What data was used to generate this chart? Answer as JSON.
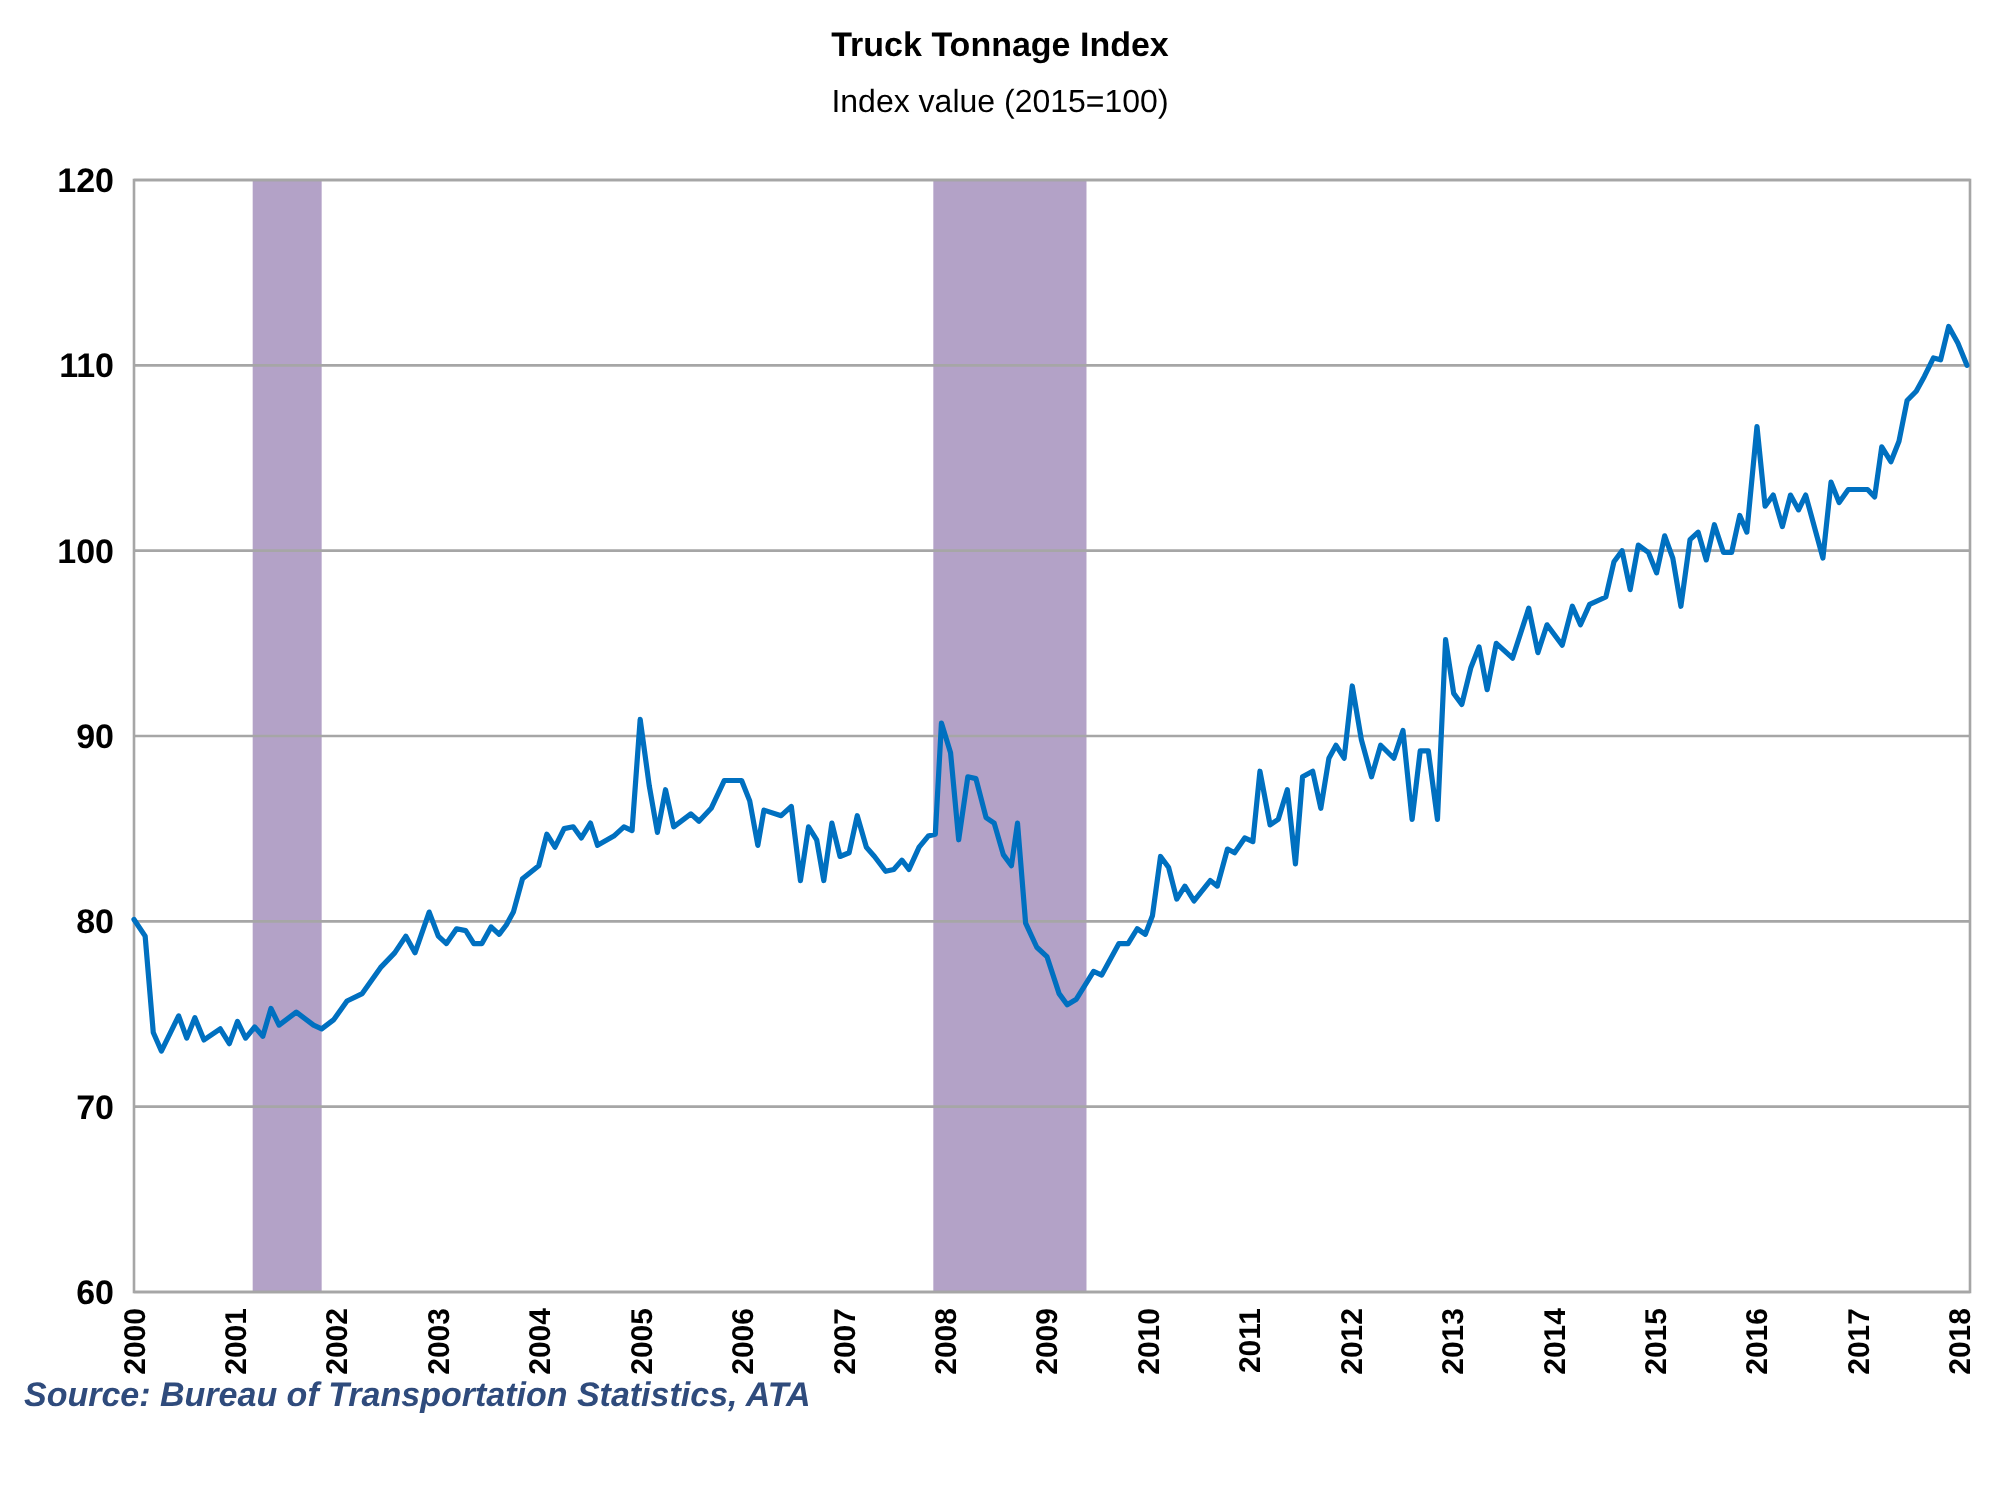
{
  "chart_data": {
    "type": "line",
    "title": "Truck Tonnage Index",
    "subtitle": "Index value (2015=100)",
    "annotations": [
      "Source: Bureau of Transportation Statistics, ATA"
    ],
    "xlim": [
      2000,
      2018.1
    ],
    "xticks": [
      2000,
      2001,
      2002,
      2003,
      2004,
      2005,
      2006,
      2007,
      2008,
      2009,
      2010,
      2011,
      2012,
      2013,
      2014,
      2015,
      2016,
      2017,
      2018
    ],
    "ylim": [
      60,
      120
    ],
    "yticks": [
      60,
      70,
      80,
      90,
      100,
      110,
      120
    ],
    "grid": "y",
    "marker": "none",
    "line_style": "solid",
    "bands": [
      {
        "axis": "x",
        "from": 2001.17,
        "to": 2001.85,
        "color": "#b3a2c7"
      },
      {
        "axis": "x",
        "from": 2007.88,
        "to": 2009.39,
        "color": "#b3a2c7"
      }
    ],
    "series": [
      {
        "color": "#0070c0",
        "x": [
          2000.0,
          2000.11,
          2000.19,
          2000.27,
          2000.44,
          2000.52,
          2000.6,
          2000.69,
          2000.85,
          2000.94,
          2001.02,
          2001.1,
          2001.19,
          2001.27,
          2001.35,
          2001.43,
          2001.6,
          2001.77,
          2001.85,
          2001.97,
          2002.1,
          2002.25,
          2002.43,
          2002.57,
          2002.68,
          2002.77,
          2002.91,
          2003.0,
          2003.08,
          2003.18,
          2003.27,
          2003.35,
          2003.43,
          2003.52,
          2003.6,
          2003.67,
          2003.74,
          2003.83,
          2003.99,
          2004.07,
          2004.15,
          2004.24,
          2004.33,
          2004.41,
          2004.5,
          2004.57,
          2004.73,
          2004.83,
          2004.91,
          2004.99,
          2005.08,
          2005.16,
          2005.24,
          2005.32,
          2005.49,
          2005.57,
          2005.69,
          2005.82,
          2005.99,
          2006.07,
          2006.15,
          2006.21,
          2006.38,
          2006.48,
          2006.57,
          2006.65,
          2006.73,
          2006.8,
          2006.88,
          2006.96,
          2007.05,
          2007.13,
          2007.22,
          2007.3,
          2007.41,
          2007.49,
          2007.57,
          2007.64,
          2007.74,
          2007.83,
          2007.9,
          2007.96,
          2008.05,
          2008.13,
          2008.22,
          2008.3,
          2008.4,
          2008.48,
          2008.57,
          2008.65,
          2008.71,
          2008.79,
          2008.9,
          2009.0,
          2009.12,
          2009.2,
          2009.29,
          2009.46,
          2009.54,
          2009.71,
          2009.8,
          2009.89,
          2009.97,
          2010.04,
          2010.12,
          2010.2,
          2010.28,
          2010.36,
          2010.45,
          2010.61,
          2010.68,
          2010.78,
          2010.85,
          2010.95,
          2011.03,
          2011.1,
          2011.2,
          2011.28,
          2011.37,
          2011.45,
          2011.52,
          2011.62,
          2011.7,
          2011.78,
          2011.85,
          2011.93,
          2012.01,
          2012.1,
          2012.2,
          2012.29,
          2012.42,
          2012.51,
          2012.6,
          2012.68,
          2012.76,
          2012.85,
          2012.93,
          2013.01,
          2013.09,
          2013.18,
          2013.26,
          2013.34,
          2013.43,
          2013.59,
          2013.75,
          2013.84,
          2013.93,
          2014.08,
          2014.18,
          2014.26,
          2014.35,
          2014.51,
          2014.59,
          2014.67,
          2014.75,
          2014.83,
          2014.93,
          2015.01,
          2015.09,
          2015.17,
          2015.25,
          2015.34,
          2015.42,
          2015.5,
          2015.58,
          2015.67,
          2015.75,
          2015.83,
          2015.9,
          2016.0,
          2016.08,
          2016.16,
          2016.25,
          2016.33,
          2016.41,
          2016.48,
          2016.65,
          2016.73,
          2016.81,
          2016.9,
          2017.09,
          2017.16,
          2017.23,
          2017.32,
          2017.4,
          2017.48,
          2017.57,
          2017.65,
          2017.74,
          2017.81,
          2017.89,
          2017.98,
          2018.07
        ],
        "values": [
          80.1,
          79.2,
          74.0,
          73.0,
          74.9,
          73.7,
          74.8,
          73.6,
          74.2,
          73.4,
          74.6,
          73.7,
          74.3,
          73.8,
          75.3,
          74.4,
          75.1,
          74.4,
          74.2,
          74.7,
          75.7,
          76.1,
          77.5,
          78.3,
          79.2,
          78.3,
          80.5,
          79.2,
          78.8,
          79.6,
          79.5,
          78.8,
          78.8,
          79.7,
          79.3,
          79.8,
          80.5,
          82.3,
          83.0,
          84.7,
          84.0,
          85.0,
          85.1,
          84.5,
          85.3,
          84.1,
          84.6,
          85.1,
          84.9,
          90.9,
          87.3,
          84.8,
          87.1,
          85.1,
          85.8,
          85.4,
          86.1,
          87.6,
          87.6,
          86.5,
          84.1,
          86.0,
          85.7,
          86.2,
          82.2,
          85.1,
          84.4,
          82.2,
          85.3,
          83.5,
          83.7,
          85.7,
          84.0,
          83.5,
          82.7,
          82.8,
          83.3,
          82.8,
          84.0,
          84.6,
          84.7,
          90.7,
          89.1,
          84.4,
          87.8,
          87.7,
          85.6,
          85.3,
          83.6,
          83.0,
          85.3,
          79.9,
          78.6,
          78.1,
          76.1,
          75.5,
          75.8,
          77.3,
          77.1,
          78.8,
          78.8,
          79.6,
          79.3,
          80.3,
          83.5,
          82.9,
          81.2,
          81.9,
          81.1,
          82.2,
          81.9,
          83.9,
          83.7,
          84.5,
          84.3,
          88.1,
          85.2,
          85.5,
          87.1,
          83.1,
          87.8,
          88.1,
          86.1,
          88.8,
          89.5,
          88.8,
          92.7,
          89.8,
          87.8,
          89.5,
          88.8,
          90.3,
          85.5,
          89.2,
          89.2,
          85.5,
          95.2,
          92.3,
          91.7,
          93.7,
          94.8,
          92.5,
          95.0,
          94.2,
          96.9,
          94.5,
          96.0,
          94.9,
          97.0,
          96.0,
          97.1,
          97.5,
          99.4,
          100.0,
          97.9,
          100.3,
          99.9,
          98.8,
          100.8,
          99.6,
          97.0,
          100.6,
          101.0,
          99.5,
          101.4,
          99.9,
          99.9,
          101.9,
          101.0,
          106.7,
          102.4,
          103.0,
          101.3,
          103.0,
          102.2,
          103.0,
          99.6,
          103.7,
          102.6,
          103.3,
          103.3,
          102.9,
          105.6,
          104.8,
          105.9,
          108.1,
          108.6,
          109.4,
          110.4,
          110.3,
          112.1,
          111.2,
          110.0
        ]
      }
    ]
  }
}
